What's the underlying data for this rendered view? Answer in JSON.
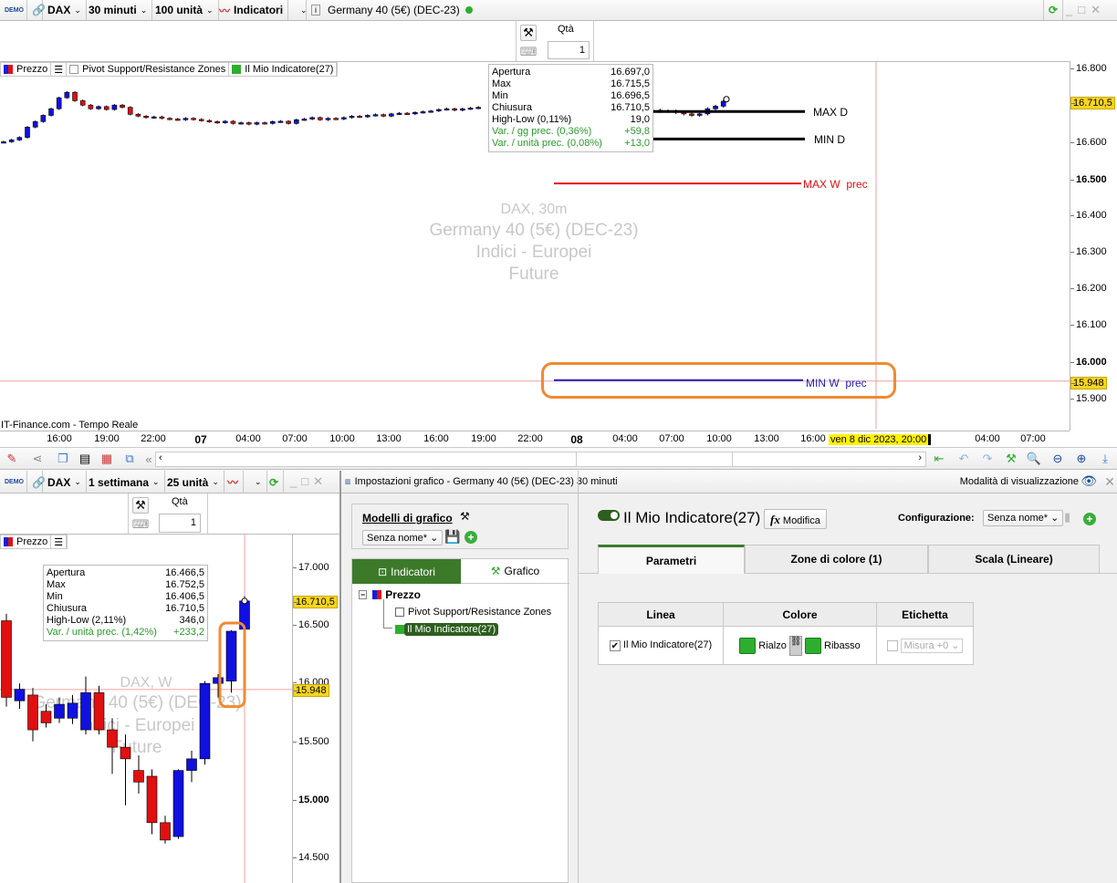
{
  "top_window": {
    "toolbar": {
      "demo_badge": "DEMO",
      "instrument": "DAX",
      "timeframe": "30 minuti",
      "units": "100 unità",
      "indicators": "Indicatori",
      "title": "Germany 40 (5€) (DEC-23)",
      "status_color": "#2eae2e"
    },
    "order": {
      "qty_label": "Qtà",
      "qty_value": "1"
    },
    "legend": {
      "price": "Prezzo",
      "pivot": "Pivot Support/Resistance Zones",
      "indicator": "Il Mio Indicatore(27)"
    },
    "tooltip": [
      [
        "Apertura",
        "16.697,0"
      ],
      [
        "Max",
        "16.715,5"
      ],
      [
        "Min",
        "16.696,5"
      ],
      [
        "Chiusura",
        "16.710,5"
      ],
      [
        "High-Low (0,11%)",
        "19,0"
      ]
    ],
    "tooltip_green": [
      [
        "Var. / gg prec. (0,36%)",
        "+59,8"
      ],
      [
        "Var. / unità prec. (0,08%)",
        "+13,0"
      ]
    ],
    "watermark": [
      "DAX, 30m",
      "Germany 40 (5€) (DEC-23)",
      "Indici - Europei",
      "Future"
    ],
    "levels": {
      "max_d": "MAX D",
      "min_d": "MIN D",
      "max_w_prec": "MAX W  prec",
      "min_w_prec": "MIN W  prec"
    },
    "level_colors": {
      "max_d": "#000000",
      "min_d": "#000000",
      "max_w_prec": "#e01010",
      "min_w_prec": "#2020c0"
    },
    "source": "IT-Finance.com - Tempo Reale",
    "y_labels": [
      "16.800",
      "16.600",
      "16.500",
      "16.400",
      "16.300",
      "16.200",
      "16.100",
      "16.000",
      "15.900"
    ],
    "price_current": "16.710,5",
    "price_cursor": "15.948",
    "x_labels": [
      "16:00",
      "19:00",
      "22:00",
      "07",
      "04:00",
      "07:00",
      "10:00",
      "13:00",
      "16:00",
      "19:00",
      "22:00",
      "08",
      "04:00",
      "07:00",
      "10:00",
      "13:00",
      "16:00",
      "04:00",
      "07:00"
    ],
    "cursor_time": "ven 8 dic 2023, 20:00"
  },
  "bottom_window": {
    "toolbar": {
      "demo_badge": "DEMO",
      "instrument": "DAX",
      "timeframe": "1 settimana",
      "units": "25 unità"
    },
    "order": {
      "qty_label": "Qtà",
      "qty_value": "1"
    },
    "legend": {
      "price": "Prezzo"
    },
    "tooltip": [
      [
        "Apertura",
        "16.466,5"
      ],
      [
        "Max",
        "16.752,5"
      ],
      [
        "Min",
        "16.406,5"
      ],
      [
        "Chiusura",
        "16.710,5"
      ],
      [
        "High-Low (2,11%)",
        "346,0"
      ]
    ],
    "tooltip_green": [
      [
        "Var. / unità prec. (1,42%)",
        "+233,2"
      ]
    ],
    "watermark": [
      "DAX, W",
      "Germany 40 (5€) (DEC-23)",
      "Indici - Europei",
      "Future"
    ],
    "y_labels": [
      "17.000",
      "16.500",
      "16.000",
      "15.500",
      "15.000",
      "14.500"
    ],
    "price_current": "16.710,5",
    "price_cursor": "15.948"
  },
  "settings": {
    "title": "Impostazioni grafico - Germany 40 (5€) (DEC-23) 30 minuti",
    "view_mode": "Modalità di visualizzazione",
    "models_label": "Modelli di grafico",
    "model_value": "Senza nome*",
    "tabs_left": [
      "Indicatori",
      "Grafico"
    ],
    "tree": {
      "root": "Prezzo",
      "items": [
        "Pivot Support/Resistance Zones",
        "Il Mio Indicatore(27)"
      ]
    },
    "indicator_name": "Il Mio Indicatore(27)",
    "modify": "Modifica",
    "config_label": "Configurazione:",
    "config_value": "Senza nome*",
    "tabs": [
      "Parametri",
      "Zone di colore (1)",
      "Scala (Lineare)"
    ],
    "table": {
      "headers": [
        "Linea",
        "Colore",
        "Etichetta"
      ],
      "line": "Il Mio Indicatore(27)",
      "up": "Rialzo",
      "down": "Ribasso",
      "label_select": "Misura +0"
    },
    "accent": "#3c7a2a"
  },
  "chart_data": [
    {
      "type": "candlestick",
      "timeframe": "30m",
      "ylim": [
        15900,
        16800
      ],
      "close": [
        16600,
        16605,
        16612,
        16640,
        16655,
        16672,
        16690,
        16720,
        16735,
        16712,
        16700,
        16690,
        16696,
        16688,
        16700,
        16694,
        16675,
        16670,
        16666,
        16668,
        16664,
        16662,
        16660,
        16664,
        16661,
        16658,
        16655,
        16652,
        16656,
        16650,
        16652,
        16648,
        16652,
        16650,
        16655,
        16656,
        16650,
        16660,
        16662,
        16666,
        16660,
        16664,
        16662,
        16666,
        16670,
        16668,
        16672,
        16674,
        16670,
        16676,
        16678,
        16676,
        16680,
        16682,
        16684,
        16688,
        16690,
        16686,
        16690,
        16692,
        16694
      ],
      "tail_close": [
        16684,
        16686,
        16683,
        16684,
        16680,
        16676,
        16672,
        16676,
        16690,
        16697,
        16710.5
      ]
    },
    {
      "type": "candlestick",
      "timeframe": "W",
      "ylim": [
        14500,
        17000
      ],
      "ohlc": [
        [
          16540,
          16600,
          15800,
          15880
        ],
        [
          15850,
          16000,
          15780,
          15950
        ],
        [
          15900,
          15960,
          15500,
          15600
        ],
        [
          15760,
          15820,
          15620,
          15660
        ],
        [
          15700,
          15880,
          15660,
          15820
        ],
        [
          15700,
          15900,
          15650,
          15830
        ],
        [
          15600,
          16060,
          15560,
          15920
        ],
        [
          15920,
          15980,
          15560,
          15600
        ],
        [
          15600,
          15700,
          15220,
          15450
        ],
        [
          15450,
          15560,
          14950,
          15350
        ],
        [
          15250,
          15380,
          15050,
          15150
        ],
        [
          15200,
          15260,
          14700,
          14800
        ],
        [
          14800,
          14860,
          14620,
          14650
        ],
        [
          14680,
          15260,
          14660,
          15250
        ],
        [
          15250,
          15420,
          15150,
          15350
        ],
        [
          15350,
          16020,
          15300,
          16000
        ],
        [
          16000,
          16080,
          15880,
          16050
        ],
        [
          16020,
          16460,
          15920,
          16450
        ],
        [
          16466.5,
          16752.5,
          16406.5,
          16710.5
        ]
      ]
    }
  ]
}
